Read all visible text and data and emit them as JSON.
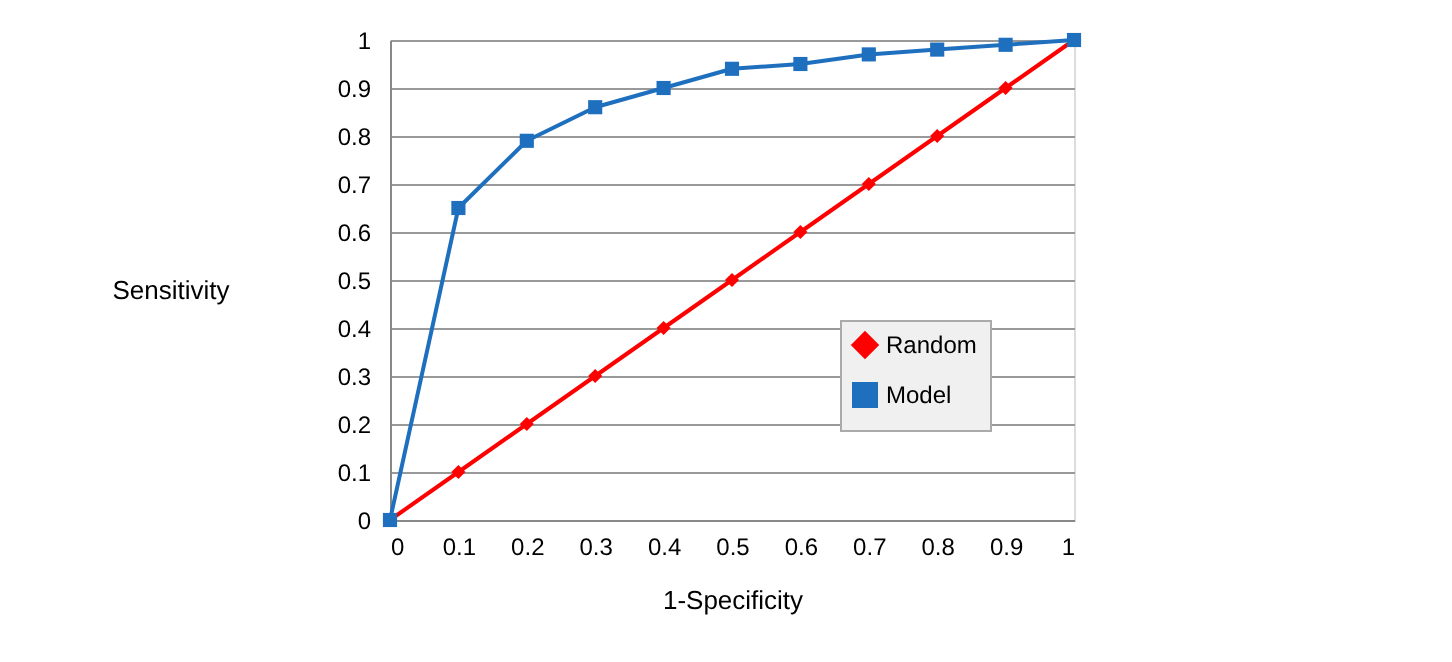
{
  "chart_data": {
    "type": "line",
    "xlabel": "1-Specificity",
    "ylabel": "Sensitivity",
    "x": [
      0,
      0.1,
      0.2,
      0.3,
      0.4,
      0.5,
      0.6,
      0.7,
      0.8,
      0.9,
      1
    ],
    "series": [
      {
        "name": "Random",
        "color": "#ff0000",
        "marker": "diamond",
        "values": [
          0,
          0.1,
          0.2,
          0.3,
          0.4,
          0.5,
          0.6,
          0.7,
          0.8,
          0.9,
          1
        ]
      },
      {
        "name": "Model",
        "color": "#1f6fbf",
        "marker": "square",
        "values": [
          0,
          0.65,
          0.79,
          0.86,
          0.9,
          0.94,
          0.95,
          0.97,
          0.98,
          0.99,
          1
        ]
      }
    ],
    "xlim": [
      0,
      1
    ],
    "xticks": [
      0,
      0.1,
      0.2,
      0.3,
      0.4,
      0.5,
      0.6,
      0.7,
      0.8,
      0.9,
      1
    ],
    "ylim": [
      0,
      1
    ],
    "yticks": [
      0,
      0.1,
      0.2,
      0.3,
      0.4,
      0.5,
      0.6,
      0.7,
      0.8,
      0.9,
      1
    ],
    "grid": "y",
    "legend": "right",
    "line_style": "solid"
  }
}
